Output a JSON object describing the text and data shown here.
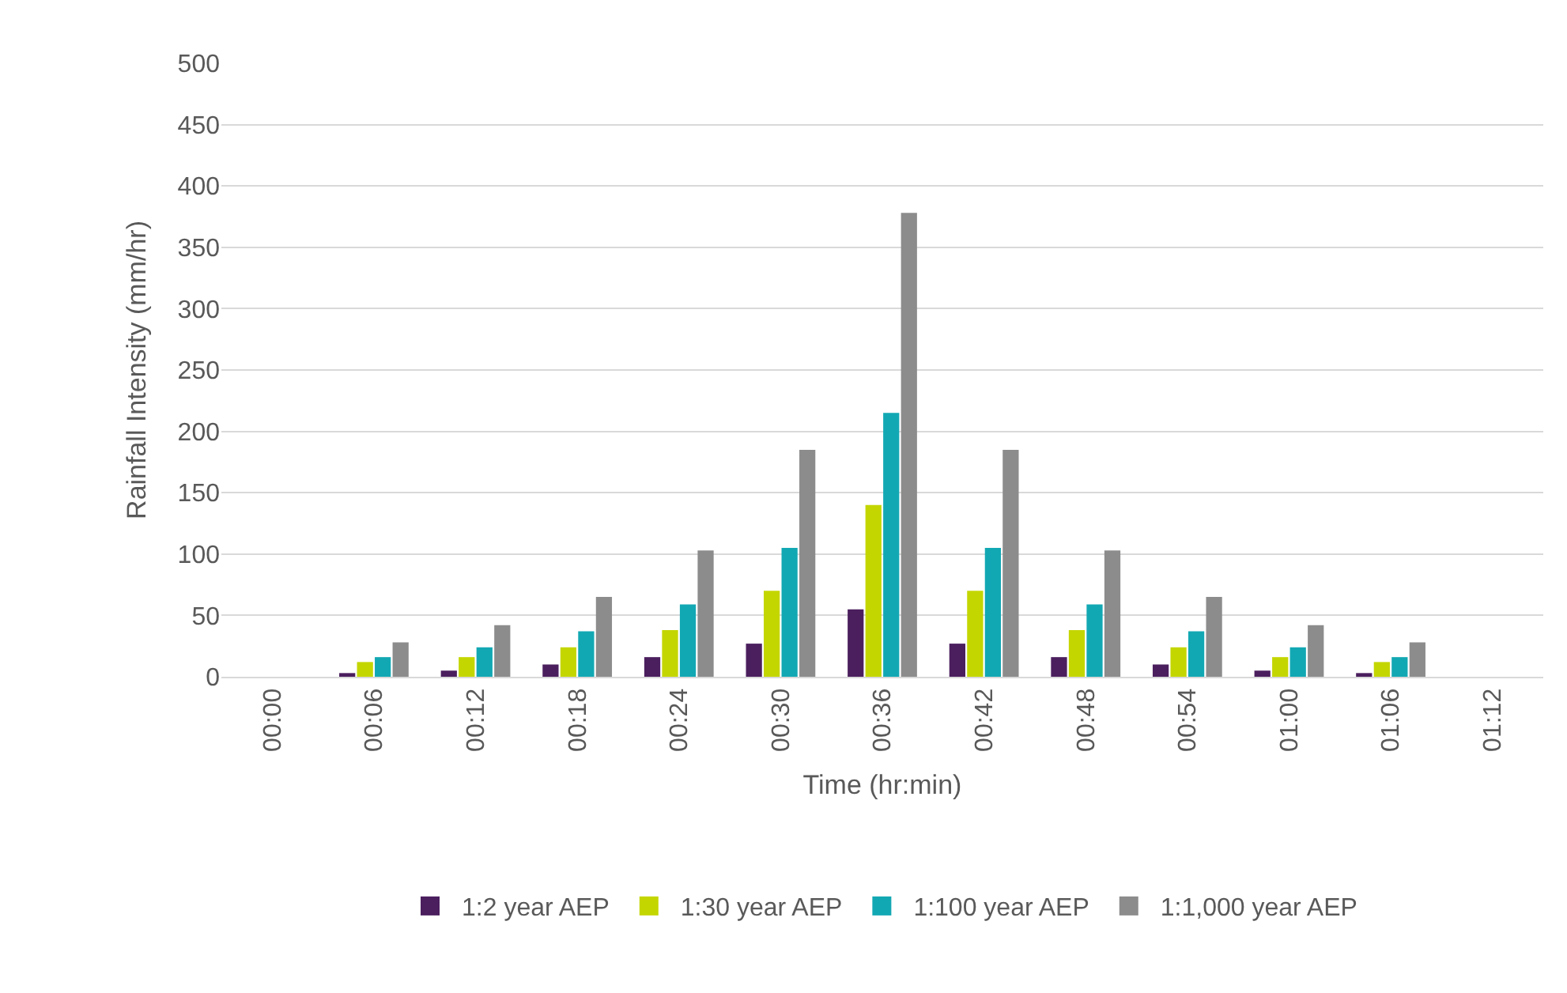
{
  "chart_data": {
    "type": "bar",
    "xlabel": "Time (hr:min)",
    "ylabel": "Rainfall Intensity (mm/hr)",
    "categories": [
      "00:00",
      "00:06",
      "00:12",
      "00:18",
      "00:24",
      "00:30",
      "00:36",
      "00:42",
      "00:48",
      "00:54",
      "01:00",
      "01:06",
      "01:12"
    ],
    "series": [
      {
        "name": "1:2 year AEP",
        "color": "#4b1f5e",
        "values": [
          0,
          3,
          5,
          10,
          16,
          27,
          55,
          27,
          16,
          10,
          5,
          3,
          0
        ]
      },
      {
        "name": "1:30 year AEP",
        "color": "#c4d600",
        "values": [
          0,
          12,
          16,
          24,
          38,
          70,
          140,
          70,
          38,
          24,
          16,
          12,
          0
        ]
      },
      {
        "name": "1:100 year AEP",
        "color": "#12a8b3",
        "values": [
          0,
          16,
          24,
          37,
          59,
          105,
          215,
          105,
          59,
          37,
          24,
          16,
          0
        ]
      },
      {
        "name": "1:1,000 year AEP",
        "color": "#8c8c8c",
        "values": [
          0,
          28,
          42,
          65,
          103,
          185,
          378,
          185,
          103,
          65,
          42,
          28,
          0
        ]
      }
    ],
    "ylim": [
      0,
      500
    ],
    "yticks": [
      0,
      50,
      100,
      150,
      200,
      250,
      300,
      350,
      400,
      450,
      500
    ],
    "grid": "y",
    "legend": "bottom"
  }
}
